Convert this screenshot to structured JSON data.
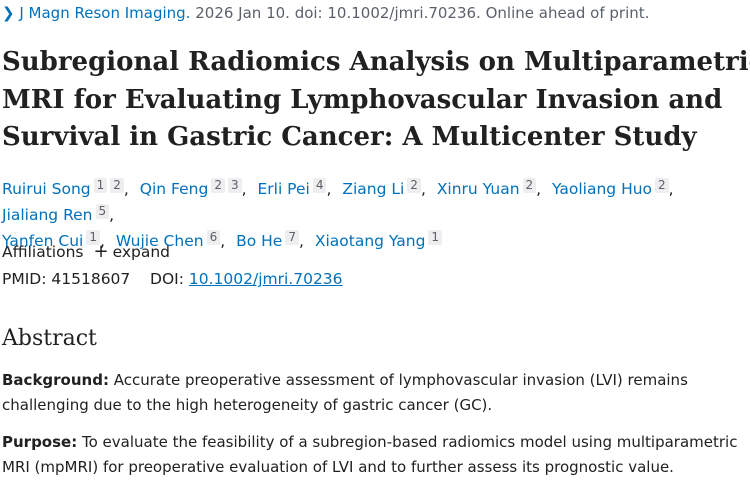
{
  "citation": {
    "journal": "J Magn Reson Imaging.",
    "details": "2026 Jan 10. doi: 10.1002/jmri.70236. Online ahead of print."
  },
  "title_lines": [
    "Subregional Radiomics Analysis on Multiparametric",
    "MRI for Evaluating Lymphovascular Invasion and",
    "Survival in Gastric Cancer: A Multicenter Study"
  ],
  "authors": [
    {
      "name": "Ruirui Song",
      "affils": [
        "1",
        "2"
      ]
    },
    {
      "name": "Qin Feng",
      "affils": [
        "2",
        "3"
      ]
    },
    {
      "name": "Erli Pei",
      "affils": [
        "4"
      ]
    },
    {
      "name": "Ziang Li",
      "affils": [
        "2"
      ]
    },
    {
      "name": "Xinru Yuan",
      "affils": [
        "2"
      ]
    },
    {
      "name": "Yaoliang Huo",
      "affils": [
        "2"
      ]
    },
    {
      "name": "Jialiang Ren",
      "affils": [
        "5"
      ]
    },
    {
      "name": "Yanfen Cui",
      "affils": [
        "1"
      ]
    },
    {
      "name": "Wujie Chen",
      "affils": [
        "6"
      ]
    },
    {
      "name": "Bo He",
      "affils": [
        "7"
      ]
    },
    {
      "name": "Xiaotang Yang",
      "affils": [
        "1"
      ]
    }
  ],
  "affiliations": {
    "label": "Affiliations",
    "action": "expand"
  },
  "ids": {
    "pmid_label": "PMID:",
    "pmid": "41518607",
    "doi_label": "DOI:",
    "doi": "10.1002/jmri.70236"
  },
  "abstract": {
    "heading": "Abstract",
    "sections": [
      {
        "label": "Background:",
        "text": "Accurate preoperative assessment of lymphovascular invasion (LVI) remains challenging due to the high heterogeneity of gastric cancer (GC)."
      },
      {
        "label": "Purpose:",
        "text": "To evaluate the feasibility of a subregion-based radiomics model using multiparametric MRI (mpMRI) for preoperative evaluation of LVI and to further assess its prognostic value."
      }
    ]
  }
}
